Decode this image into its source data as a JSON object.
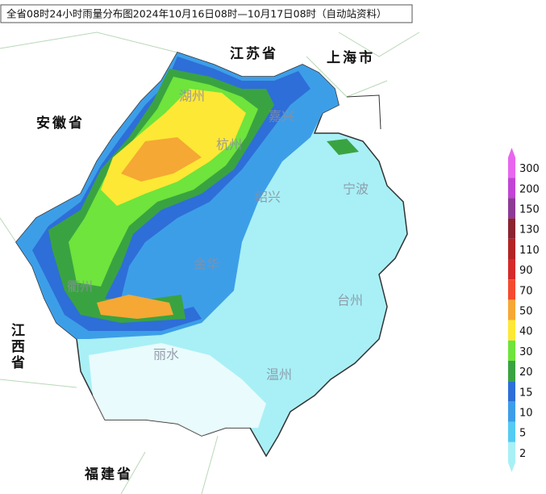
{
  "title": "全省08时24小时雨量分布图2024年10月16日08时—10月17日08时（自动站资料）",
  "provinces": [
    {
      "name": "江苏省"
    },
    {
      "name": "上海市"
    },
    {
      "name": "安徽省"
    },
    {
      "name": "江西省"
    },
    {
      "name": "福建省"
    }
  ],
  "cities": [
    "湖州",
    "嘉兴",
    "杭州",
    "绍兴",
    "宁波",
    "金华",
    "衢州",
    "台州",
    "丽水",
    "温州"
  ],
  "legend": [
    {
      "value": 300,
      "color": "#e866ee"
    },
    {
      "value": 200,
      "color": "#c244d6"
    },
    {
      "value": 150,
      "color": "#8e3a96"
    },
    {
      "value": 130,
      "color": "#8a2430"
    },
    {
      "value": 110,
      "color": "#b32424"
    },
    {
      "value": 90,
      "color": "#d62a2a"
    },
    {
      "value": 70,
      "color": "#f54a30"
    },
    {
      "value": 50,
      "color": "#f5a834"
    },
    {
      "value": 40,
      "color": "#fde835"
    },
    {
      "value": 30,
      "color": "#6ee43c"
    },
    {
      "value": 20,
      "color": "#3aa341"
    },
    {
      "value": 15,
      "color": "#2e6ed8"
    },
    {
      "value": 10,
      "color": "#3d9ee8"
    },
    {
      "value": 5,
      "color": "#55cbf3"
    },
    {
      "value": 2,
      "color": "#a8f0f6"
    }
  ]
}
